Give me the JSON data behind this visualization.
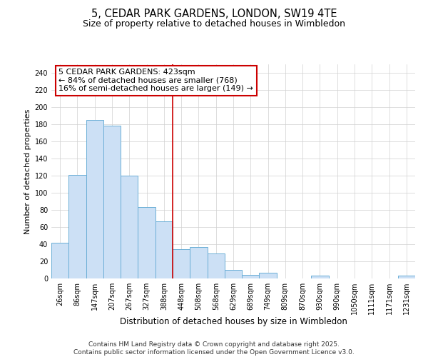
{
  "title1": "5, CEDAR PARK GARDENS, LONDON, SW19 4TE",
  "title2": "Size of property relative to detached houses in Wimbledon",
  "xlabel": "Distribution of detached houses by size in Wimbledon",
  "ylabel": "Number of detached properties",
  "bar_color": "#cce0f5",
  "bar_edge_color": "#6baed6",
  "categories": [
    "26sqm",
    "86sqm",
    "147sqm",
    "207sqm",
    "267sqm",
    "327sqm",
    "388sqm",
    "448sqm",
    "508sqm",
    "568sqm",
    "629sqm",
    "689sqm",
    "749sqm",
    "809sqm",
    "870sqm",
    "930sqm",
    "990sqm",
    "1050sqm",
    "1111sqm",
    "1171sqm",
    "1231sqm"
  ],
  "values": [
    42,
    121,
    185,
    178,
    120,
    83,
    67,
    34,
    37,
    29,
    10,
    4,
    7,
    0,
    0,
    3,
    0,
    0,
    0,
    0,
    3
  ],
  "ylim": [
    0,
    250
  ],
  "yticks": [
    0,
    20,
    40,
    60,
    80,
    100,
    120,
    140,
    160,
    180,
    200,
    220,
    240
  ],
  "vline_x": 6.5,
  "vline_color": "#cc0000",
  "annotation_title": "5 CEDAR PARK GARDENS: 423sqm",
  "annotation_line1": "← 84% of detached houses are smaller (768)",
  "annotation_line2": "16% of semi-detached houses are larger (149) →",
  "annotation_box_color": "#ffffff",
  "annotation_box_edge_color": "#cc0000",
  "footer1": "Contains HM Land Registry data © Crown copyright and database right 2025.",
  "footer2": "Contains public sector information licensed under the Open Government Licence v3.0.",
  "grid_color": "#d0d0d0",
  "background_color": "#ffffff",
  "title1_fontsize": 10.5,
  "title2_fontsize": 9,
  "xlabel_fontsize": 8.5,
  "ylabel_fontsize": 8,
  "tick_fontsize": 7,
  "annotation_fontsize": 8,
  "footer_fontsize": 6.5
}
